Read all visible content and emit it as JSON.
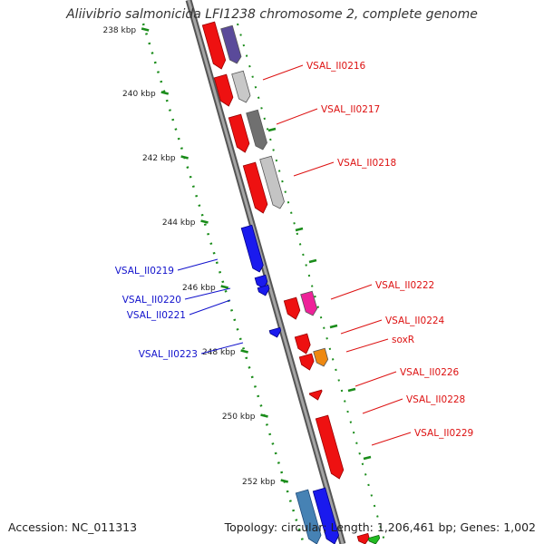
{
  "title": "Aliivibrio salmonicida LFI1238 chromosome 2, complete genome",
  "footer": {
    "accession": "Accession: NC_011313",
    "summary": "Topology: circular; Length: 1,206,461 bp; Genes: 1,002"
  },
  "colors": {
    "backbone": "#808080",
    "tick": "#1a8c1a",
    "forward_label": "#dd1111",
    "reverse_label": "#1111cc"
  },
  "tick_labels": [
    {
      "text": "238 kbp"
    },
    {
      "text": "240 kbp"
    },
    {
      "text": "242 kbp"
    },
    {
      "text": "244 kbp"
    },
    {
      "text": "246 kbp"
    },
    {
      "text": "248 kbp"
    },
    {
      "text": "250 kbp"
    },
    {
      "text": "252 kbp"
    }
  ],
  "gene_labels": [
    {
      "text": "VSAL_II0216",
      "strand": "forward"
    },
    {
      "text": "VSAL_II0217",
      "strand": "forward"
    },
    {
      "text": "VSAL_II0218",
      "strand": "forward"
    },
    {
      "text": "VSAL_II0219",
      "strand": "reverse"
    },
    {
      "text": "VSAL_II0220",
      "strand": "reverse"
    },
    {
      "text": "VSAL_II0221",
      "strand": "reverse"
    },
    {
      "text": "VSAL_II0222",
      "strand": "forward"
    },
    {
      "text": "VSAL_II0224",
      "strand": "forward"
    },
    {
      "text": "soxR",
      "strand": "forward"
    },
    {
      "text": "VSAL_II0223",
      "strand": "reverse"
    },
    {
      "text": "VSAL_II0226",
      "strand": "forward"
    },
    {
      "text": "VSAL_II0228",
      "strand": "forward"
    },
    {
      "text": "VSAL_II0229",
      "strand": "forward"
    }
  ]
}
